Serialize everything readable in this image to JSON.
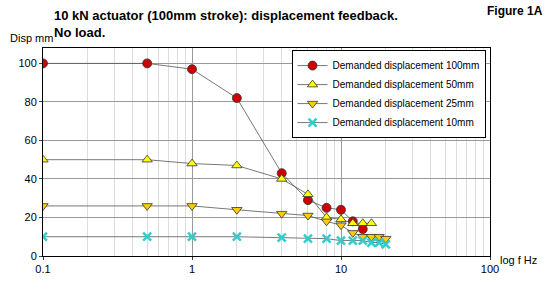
{
  "chart_data": {
    "type": "line",
    "title": "10 kN actuator (100mm stroke): displacement feedback.\nNo load.",
    "annotations": [
      {
        "text": "Figure 1A"
      }
    ],
    "xlabel": "log f Hz",
    "ylabel": "Disp mm",
    "log": "x",
    "grid": true,
    "legend": "top right",
    "xlim": [
      0.1,
      100
    ],
    "xticks": [
      0.1,
      1,
      10,
      100
    ],
    "ylim": [
      0,
      108
    ],
    "yticks": [
      0,
      20,
      40,
      60,
      80,
      100
    ],
    "series": [
      {
        "name": "Demanded displacement 100mm",
        "color": "#cc0000",
        "marker": "circle",
        "x": [
          0.1,
          0.5,
          1,
          2,
          4,
          6,
          8,
          10,
          12,
          14
        ],
        "values": [
          100,
          100,
          97,
          82,
          43,
          29,
          25,
          24,
          18,
          14
        ]
      },
      {
        "name": "Demanded displacement 50mm",
        "color": "#ffff00",
        "marker": "triangle-up",
        "x": [
          0.1,
          0.5,
          1,
          2,
          4,
          6,
          8,
          10,
          12,
          14,
          16
        ],
        "values": [
          50,
          50,
          48,
          47,
          40,
          32,
          20,
          19,
          17,
          17,
          17
        ]
      },
      {
        "name": "Demanded displacement 25mm",
        "color": "#ffcc00",
        "marker": "triangle-down",
        "x": [
          0.1,
          0.5,
          1,
          2,
          4,
          6,
          8,
          10,
          12,
          14,
          16,
          18,
          20
        ],
        "values": [
          26,
          26,
          26,
          24,
          22,
          21,
          18,
          16,
          12,
          10,
          10,
          10,
          9
        ]
      },
      {
        "name": "Demanded displacement 10mm",
        "color": "#33cccc",
        "marker": "x",
        "x": [
          0.1,
          0.5,
          1,
          2,
          4,
          6,
          8,
          10,
          12,
          14,
          16,
          18,
          20
        ],
        "values": [
          10,
          10,
          10,
          10,
          9.5,
          9,
          9,
          8,
          8,
          8,
          7,
          7,
          6
        ]
      }
    ]
  }
}
